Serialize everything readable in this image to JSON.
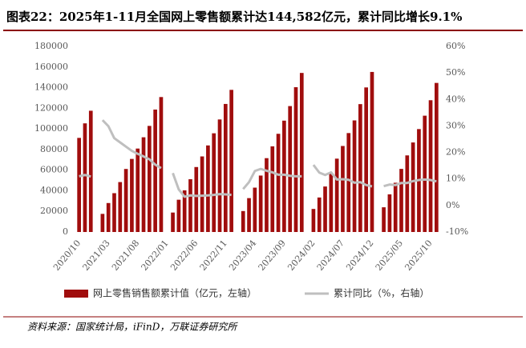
{
  "chart_data": {
    "type": "bar-line",
    "title": "图表22：2025年1-11月全国网上零售额累计达144,582亿元，累计同比增长9.1%",
    "source": "资料来源：国家统计局，iFinD，万联证券研究所",
    "categories": [
      "2020/10",
      null,
      null,
      null,
      null,
      "2021/03",
      null,
      null,
      null,
      null,
      "2021/08",
      null,
      null,
      null,
      null,
      "2022/01",
      null,
      null,
      null,
      null,
      "2022/06",
      null,
      null,
      null,
      null,
      "2022/11",
      null,
      null,
      null,
      null,
      "2023/04",
      null,
      null,
      null,
      null,
      "2023/09",
      null,
      null,
      null,
      null,
      "2024/02",
      null,
      null,
      null,
      null,
      "2024/07",
      null,
      null,
      null,
      null,
      "2024/12",
      null,
      null,
      null,
      null,
      "2025/05",
      null,
      null,
      null,
      null,
      "2025/10",
      null
    ],
    "series": [
      {
        "name": "网上零售销售额累计值（亿元，左轴）",
        "color": "#a00d0d",
        "axis": "y",
        "values": [
          91275,
          105374,
          117601,
          null,
          17587,
          28093,
          37658,
          48421,
          61133,
          70880,
          80931,
          91871,
          102900,
          118749,
          130884,
          null,
          18867,
          31303,
          40405,
          51176,
          63007,
          73303,
          83962,
          95735,
          109151,
          124189,
          137853,
          null,
          20322,
          32863,
          43025,
          54737,
          71621,
          83088,
          95243,
          108003,
          122122,
          140429,
          154264,
          null,
          22357,
          33467,
          44125,
          57185,
          71141,
          83434,
          95946,
          108227,
          124026,
          140205,
          155225,
          null,
          23974,
          36526,
          47761,
          61191,
          74295,
          86835,
          99827,
          112804,
          127800,
          144582
        ]
      },
      {
        "name": "累计同比（%，右轴）",
        "color": "#bfbfbf",
        "axis": "y2",
        "values": [
          11.0,
          11.5,
          10.9,
          null,
          32.2,
          29.9,
          25.4,
          23.8,
          22.2,
          20.6,
          19.5,
          18.5,
          17.4,
          15.4,
          14.1,
          null,
          12.2,
          6.1,
          3.3,
          3.8,
          3.6,
          3.7,
          3.8,
          4.0,
          4.3,
          4.2,
          4.0,
          null,
          6.2,
          8.8,
          13.0,
          13.8,
          13.1,
          12.5,
          11.6,
          11.6,
          11.2,
          11.0,
          11.0,
          null,
          15.3,
          12.4,
          11.5,
          12.5,
          9.8,
          9.9,
          9.7,
          8.6,
          8.8,
          7.7,
          7.2,
          null,
          7.3,
          7.9,
          7.7,
          8.5,
          8.5,
          9.2,
          9.6,
          9.8,
          9.6,
          9.1
        ]
      }
    ],
    "ylim": [
      0,
      180000
    ],
    "yticks": [
      0,
      20000,
      40000,
      60000,
      80000,
      100000,
      120000,
      140000,
      160000,
      180000
    ],
    "y2lim": [
      -10,
      60
    ],
    "y2ticks": [
      {
        "value": -10,
        "label": "-10%"
      },
      {
        "value": 0,
        "label": "0%"
      },
      {
        "value": 10,
        "label": "10%"
      },
      {
        "value": 20,
        "label": "20%"
      },
      {
        "value": 30,
        "label": "30%"
      },
      {
        "value": 40,
        "label": "40%"
      },
      {
        "value": 50,
        "label": "50%"
      },
      {
        "value": 60,
        "label": "60%"
      }
    ]
  }
}
